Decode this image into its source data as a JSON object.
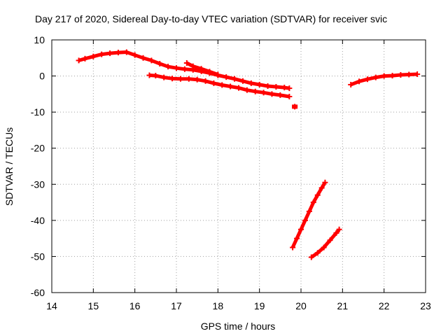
{
  "chart_data": {
    "type": "scatter",
    "title": "Day 217 of 2020, Sidereal Day-to-day VTEC variation (SDTVAR) for receiver svic",
    "xlabel": "GPS time / hours",
    "ylabel": "SDTVAR / TECUs",
    "xlim": [
      14,
      23
    ],
    "ylim": [
      -60,
      10
    ],
    "xticks": [
      14,
      15,
      16,
      17,
      18,
      19,
      20,
      21,
      22,
      23
    ],
    "yticks": [
      -60,
      -50,
      -40,
      -30,
      -20,
      -10,
      0,
      10
    ],
    "grid": true,
    "legend": "none",
    "marker_color": "#ff0000",
    "series": [
      {
        "x": [
          14.65,
          14.8,
          15.0,
          15.2,
          15.4,
          15.6,
          15.8,
          16.0,
          16.2,
          16.4,
          16.6,
          16.8,
          17.0,
          17.2,
          17.4,
          17.6,
          17.8,
          18.0,
          18.2,
          18.4,
          18.6,
          18.8,
          19.0,
          19.2,
          19.4,
          19.6,
          19.72
        ],
        "y": [
          4.3,
          4.8,
          5.4,
          6.0,
          6.3,
          6.5,
          6.6,
          5.8,
          5.0,
          4.3,
          3.4,
          2.6,
          2.2,
          1.9,
          1.7,
          1.3,
          0.8,
          0.2,
          -0.3,
          -0.8,
          -1.4,
          -2.0,
          -2.4,
          -2.8,
          -3.0,
          -3.2,
          -3.4
        ]
      },
      {
        "x": [
          17.25,
          17.4,
          17.6,
          17.8,
          18.0
        ],
        "y": [
          3.6,
          2.7,
          2.0,
          1.2,
          0.4
        ]
      },
      {
        "x": [
          16.35,
          16.5,
          16.7,
          16.9,
          17.1,
          17.3,
          17.5,
          17.7,
          17.9,
          18.1,
          18.3,
          18.5,
          18.7,
          18.9,
          19.1,
          19.3,
          19.5,
          19.72
        ],
        "y": [
          0.2,
          0.1,
          -0.4,
          -0.7,
          -0.8,
          -0.8,
          -1.0,
          -1.4,
          -2.0,
          -2.5,
          -2.9,
          -3.3,
          -3.9,
          -4.3,
          -4.6,
          -5.0,
          -5.3,
          -5.7
        ]
      },
      {
        "x": [
          19.85
        ],
        "y": [
          -8.5
        ]
      },
      {
        "x": [
          19.8,
          19.9,
          20.0,
          20.1,
          20.2,
          20.3,
          20.4,
          20.5,
          20.58
        ],
        "y": [
          -47.5,
          -45.0,
          -42.5,
          -40.0,
          -37.5,
          -35.0,
          -33.0,
          -31.0,
          -29.5
        ]
      },
      {
        "x": [
          20.25,
          20.4,
          20.55,
          20.7,
          20.85,
          20.92
        ],
        "y": [
          -50.2,
          -49.0,
          -47.5,
          -45.5,
          -43.5,
          -42.5
        ]
      },
      {
        "x": [
          21.2,
          21.4,
          21.6,
          21.8,
          22.0,
          22.2,
          22.4,
          22.6,
          22.8
        ],
        "y": [
          -2.4,
          -1.5,
          -0.9,
          -0.4,
          0.0,
          0.1,
          0.3,
          0.4,
          0.5
        ]
      }
    ]
  }
}
